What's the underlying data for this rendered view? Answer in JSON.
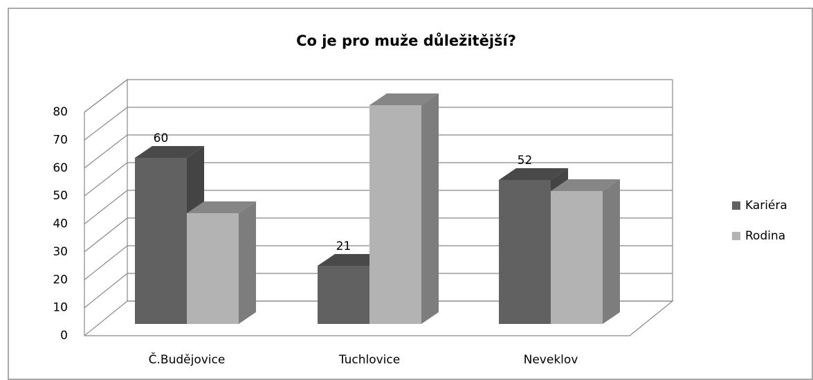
{
  "chart_data": {
    "type": "bar3d",
    "title": "Co je pro muže důležitější?",
    "categories": [
      "Č.Budějovice",
      "Tuchlovice",
      "Neveklov"
    ],
    "series": [
      {
        "name": "Kariéra",
        "color": "#616161",
        "values": [
          60,
          21,
          52
        ]
      },
      {
        "name": "Rodina",
        "color": "#b3b3b3",
        "values": [
          40,
          79,
          48
        ]
      }
    ],
    "data_labels_series": "Kariéra",
    "ylim": [
      0,
      80
    ],
    "yticks": [
      0,
      10,
      20,
      30,
      40,
      50,
      60,
      70,
      80
    ],
    "grid": true,
    "legend": "right"
  }
}
